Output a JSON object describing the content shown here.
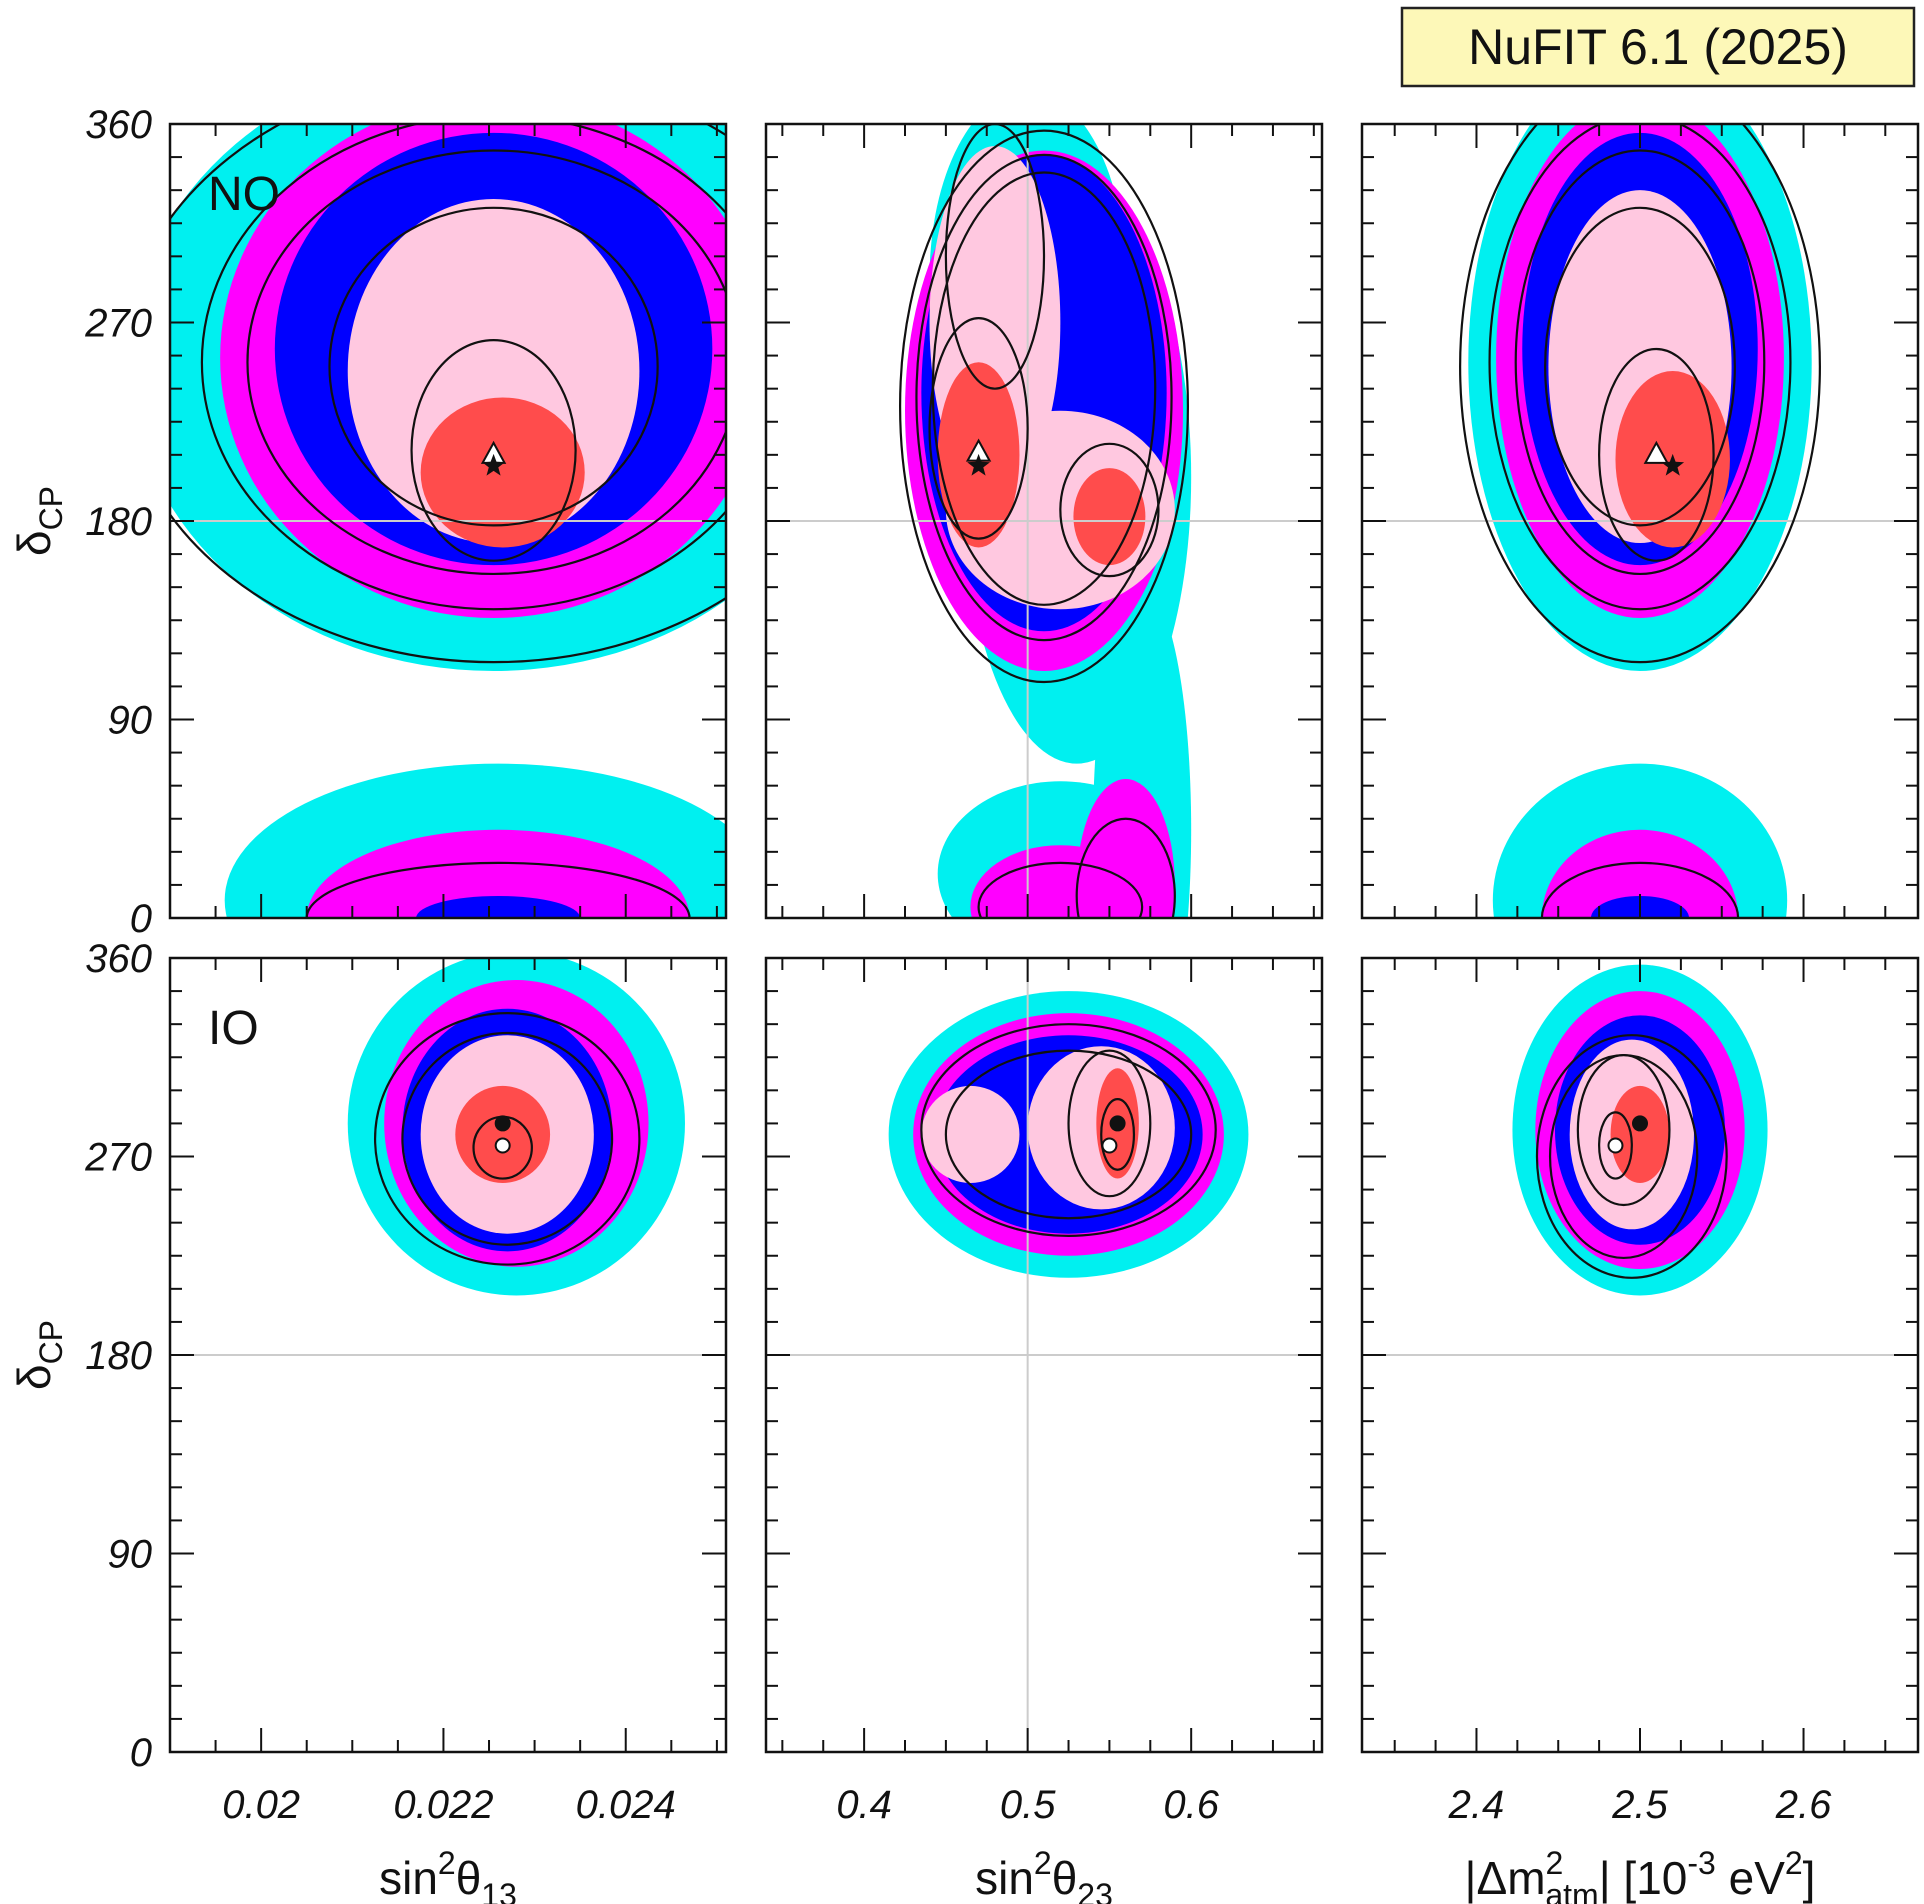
{
  "badge": {
    "text": "NuFIT 6.1 (2025)",
    "fill": "#fdf8b8",
    "stroke": "#222222"
  },
  "region_colors": {
    "sigma5": "#00f0f0",
    "sigma4": "#ff00ff",
    "sigma3": "#0000ff",
    "sigma2": "#ffc8e0",
    "sigma1": "#ff4c4c",
    "contour": "#111111",
    "reference_line": "#cccccc"
  },
  "chart_data": [
    {
      "type": "contour",
      "panel": "NO",
      "label": "NO",
      "xlim": [
        0.019,
        0.0251
      ],
      "ylim": [
        0,
        360
      ],
      "xticks": [],
      "xlabel": "",
      "ylabel": {
        "main": "δ",
        "sub": "CP"
      },
      "yticks": [
        "0",
        "90",
        "180",
        "270",
        "360"
      ],
      "reference_lines": {
        "y": 180
      },
      "best_fit_star": [
        0.02255,
        205
      ],
      "best_fit_triangle": [
        0.02255,
        210
      ],
      "ellipses": [
        {
          "level": "5sigma",
          "cx": 0.02255,
          "cy": 252,
          "rx": 0.004,
          "ry": 140
        },
        {
          "level": "4sigma",
          "cx": 0.02255,
          "cy": 254,
          "rx": 0.003,
          "ry": 118
        },
        {
          "level": "3sigma",
          "cx": 0.02255,
          "cy": 258,
          "rx": 0.0024,
          "ry": 98
        },
        {
          "level": "2sigma",
          "cx": 0.02255,
          "cy": 248,
          "rx": 0.0016,
          "ry": 78
        },
        {
          "level": "1sigma",
          "cx": 0.02265,
          "cy": 202,
          "rx": 0.0009,
          "ry": 34
        },
        {
          "level": "5sigma",
          "cx": 0.0226,
          "cy": 8,
          "rx": 0.003,
          "ry": 62
        },
        {
          "level": "4sigma",
          "cx": 0.0226,
          "cy": 0,
          "rx": 0.0021,
          "ry": 40
        },
        {
          "level": "3sigma",
          "cx": 0.0226,
          "cy": 0,
          "rx": 0.0009,
          "ry": 10
        }
      ],
      "lines": [
        {
          "cx": 0.02255,
          "cy": 250,
          "rx": 0.0041,
          "ry": 134
        },
        {
          "cx": 0.02255,
          "cy": 252,
          "rx": 0.0032,
          "ry": 112
        },
        {
          "cx": 0.02255,
          "cy": 252,
          "rx": 0.0027,
          "ry": 96
        },
        {
          "cx": 0.02255,
          "cy": 250,
          "rx": 0.0018,
          "ry": 72
        },
        {
          "cx": 0.02255,
          "cy": 212,
          "rx": 0.0009,
          "ry": 50
        },
        {
          "cx": 0.0226,
          "cy": 0,
          "rx": 0.0021,
          "ry": 25
        }
      ]
    },
    {
      "type": "contour",
      "panel": "NO",
      "label": "",
      "xlim": [
        0.34,
        0.68
      ],
      "ylim": [
        0,
        360
      ],
      "xticks": [],
      "xlabel": "",
      "ylabel": null,
      "yticks": [],
      "reference_lines": {
        "x": 0.5,
        "y": 180
      },
      "best_fit_star": [
        0.47,
        205
      ],
      "best_fit_triangle": [
        0.47,
        211
      ],
      "ellipses": [
        {
          "level": "5sigma",
          "cx": 0.53,
          "cy": 200,
          "rx": 0.07,
          "ry": 130
        },
        {
          "level": "5sigma",
          "cx": 0.5,
          "cy": 290,
          "rx": 0.06,
          "ry": 85
        },
        {
          "level": "5sigma",
          "cx": 0.57,
          "cy": 40,
          "rx": 0.03,
          "ry": 110
        },
        {
          "level": "5sigma",
          "cx": 0.52,
          "cy": 20,
          "rx": 0.075,
          "ry": 42
        },
        {
          "level": "4sigma",
          "cx": 0.51,
          "cy": 230,
          "rx": 0.085,
          "ry": 118
        },
        {
          "level": "4sigma",
          "cx": 0.56,
          "cy": 15,
          "rx": 0.03,
          "ry": 48
        },
        {
          "level": "4sigma",
          "cx": 0.52,
          "cy": 5,
          "rx": 0.055,
          "ry": 28
        },
        {
          "level": "3sigma",
          "cx": 0.51,
          "cy": 238,
          "rx": 0.075,
          "ry": 108
        },
        {
          "level": "2sigma",
          "cx": 0.48,
          "cy": 270,
          "rx": 0.04,
          "ry": 80
        },
        {
          "level": "2sigma",
          "cx": 0.52,
          "cy": 185,
          "rx": 0.07,
          "ry": 45
        },
        {
          "level": "1sigma",
          "cx": 0.47,
          "cy": 210,
          "rx": 0.025,
          "ry": 42
        },
        {
          "level": "1sigma",
          "cx": 0.55,
          "cy": 182,
          "rx": 0.022,
          "ry": 22
        }
      ],
      "lines": [
        {
          "cx": 0.51,
          "cy": 232,
          "rx": 0.088,
          "ry": 125
        },
        {
          "cx": 0.51,
          "cy": 236,
          "rx": 0.078,
          "ry": 110
        },
        {
          "cx": 0.51,
          "cy": 240,
          "rx": 0.068,
          "ry": 98
        },
        {
          "cx": 0.48,
          "cy": 300,
          "rx": 0.03,
          "ry": 60
        },
        {
          "cx": 0.47,
          "cy": 222,
          "rx": 0.03,
          "ry": 50
        },
        {
          "cx": 0.55,
          "cy": 185,
          "rx": 0.03,
          "ry": 30
        },
        {
          "cx": 0.56,
          "cy": 10,
          "rx": 0.03,
          "ry": 35
        },
        {
          "cx": 0.52,
          "cy": 5,
          "rx": 0.05,
          "ry": 20
        }
      ]
    },
    {
      "type": "contour",
      "panel": "NO",
      "label": "",
      "xlim": [
        2.33,
        2.67
      ],
      "ylim": [
        0,
        360
      ],
      "xticks": [],
      "xlabel": "",
      "ylabel": null,
      "yticks": [],
      "reference_lines": {
        "y": 180
      },
      "best_fit_star": [
        2.52,
        205
      ],
      "best_fit_triangle": [
        2.51,
        210
      ],
      "ellipses": [
        {
          "level": "5sigma",
          "cx": 2.5,
          "cy": 252,
          "rx": 0.105,
          "ry": 140
        },
        {
          "level": "4sigma",
          "cx": 2.5,
          "cy": 254,
          "rx": 0.088,
          "ry": 118
        },
        {
          "level": "3sigma",
          "cx": 2.5,
          "cy": 258,
          "rx": 0.072,
          "ry": 98
        },
        {
          "level": "2sigma",
          "cx": 2.5,
          "cy": 250,
          "rx": 0.056,
          "ry": 80
        },
        {
          "level": "1sigma",
          "cx": 2.52,
          "cy": 208,
          "rx": 0.035,
          "ry": 40
        },
        {
          "level": "5sigma",
          "cx": 2.5,
          "cy": 8,
          "rx": 0.09,
          "ry": 62
        },
        {
          "level": "4sigma",
          "cx": 2.5,
          "cy": 0,
          "rx": 0.06,
          "ry": 40
        },
        {
          "level": "3sigma",
          "cx": 2.5,
          "cy": 0,
          "rx": 0.03,
          "ry": 10
        }
      ],
      "lines": [
        {
          "cx": 2.5,
          "cy": 250,
          "rx": 0.11,
          "ry": 134
        },
        {
          "cx": 2.5,
          "cy": 252,
          "rx": 0.092,
          "ry": 112
        },
        {
          "cx": 2.5,
          "cy": 252,
          "rx": 0.076,
          "ry": 96
        },
        {
          "cx": 2.5,
          "cy": 250,
          "rx": 0.058,
          "ry": 72
        },
        {
          "cx": 2.51,
          "cy": 210,
          "rx": 0.035,
          "ry": 48
        },
        {
          "cx": 2.5,
          "cy": 0,
          "rx": 0.06,
          "ry": 25
        }
      ]
    },
    {
      "type": "contour",
      "panel": "IO",
      "label": "IO",
      "xlim": [
        0.019,
        0.0251
      ],
      "ylim": [
        0,
        360
      ],
      "xticks": [
        "0.02",
        "0.022",
        "0.024"
      ],
      "xlabel": {
        "main": "sin",
        "sup": "2",
        "theta": "θ",
        "sub": "13"
      },
      "ylabel": {
        "main": "δ",
        "sub": "CP"
      },
      "yticks": [
        "0",
        "90",
        "180",
        "270",
        "360"
      ],
      "reference_lines": {
        "y": 180
      },
      "best_fit_dot": [
        0.02265,
        285
      ],
      "best_fit_circle": [
        0.02265,
        275
      ],
      "ellipses": [
        {
          "level": "5sigma",
          "cx": 0.0228,
          "cy": 285,
          "rx": 0.00185,
          "ry": 78
        },
        {
          "level": "4sigma",
          "cx": 0.0228,
          "cy": 285,
          "rx": 0.00145,
          "ry": 65
        },
        {
          "level": "3sigma",
          "cx": 0.0227,
          "cy": 282,
          "rx": 0.00115,
          "ry": 55
        },
        {
          "level": "2sigma",
          "cx": 0.0227,
          "cy": 280,
          "rx": 0.00095,
          "ry": 45
        },
        {
          "level": "1sigma",
          "cx": 0.02265,
          "cy": 280,
          "rx": 0.00052,
          "ry": 22
        }
      ],
      "lines": [
        {
          "cx": 0.0227,
          "cy": 278,
          "rx": 0.00145,
          "ry": 57
        },
        {
          "cx": 0.0227,
          "cy": 278,
          "rx": 0.00115,
          "ry": 48
        },
        {
          "cx": 0.02265,
          "cy": 274,
          "rx": 0.00032,
          "ry": 14
        }
      ]
    },
    {
      "type": "contour",
      "panel": "IO",
      "label": "",
      "xlim": [
        0.34,
        0.68
      ],
      "ylim": [
        0,
        360
      ],
      "xticks": [
        "0.4",
        "0.5",
        "0.6"
      ],
      "xlabel": {
        "main": "sin",
        "sup": "2",
        "theta": "θ",
        "sub": "23"
      },
      "ylabel": null,
      "yticks": [],
      "reference_lines": {
        "x": 0.5,
        "y": 180
      },
      "best_fit_dot": [
        0.555,
        285
      ],
      "best_fit_circle": [
        0.55,
        275
      ],
      "ellipses": [
        {
          "level": "5sigma",
          "cx": 0.525,
          "cy": 280,
          "rx": 0.11,
          "ry": 65
        },
        {
          "level": "4sigma",
          "cx": 0.525,
          "cy": 280,
          "rx": 0.095,
          "ry": 55
        },
        {
          "level": "3sigma",
          "cx": 0.525,
          "cy": 280,
          "rx": 0.082,
          "ry": 45
        },
        {
          "level": "2sigma",
          "cx": 0.465,
          "cy": 280,
          "rx": 0.03,
          "ry": 22
        },
        {
          "level": "2sigma",
          "cx": 0.545,
          "cy": 283,
          "rx": 0.045,
          "ry": 37
        },
        {
          "level": "1sigma",
          "cx": 0.555,
          "cy": 285,
          "rx": 0.013,
          "ry": 25
        }
      ],
      "lines": [
        {
          "cx": 0.525,
          "cy": 282,
          "rx": 0.09,
          "ry": 48
        },
        {
          "cx": 0.525,
          "cy": 280,
          "rx": 0.075,
          "ry": 38
        },
        {
          "cx": 0.55,
          "cy": 285,
          "rx": 0.025,
          "ry": 33
        },
        {
          "cx": 0.555,
          "cy": 280,
          "rx": 0.01,
          "ry": 16
        }
      ]
    },
    {
      "type": "contour",
      "panel": "IO",
      "label": "",
      "xlim": [
        2.33,
        2.67
      ],
      "ylim": [
        0,
        360
      ],
      "xticks": [
        "2.4",
        "2.5",
        "2.6"
      ],
      "xlabel": {
        "pre": "|Δm",
        "sup": "2",
        "sub": "atm",
        "post": "| [10",
        "sup2": "-3",
        "post2": " eV",
        "sup3": "2",
        "end": "]"
      },
      "ylabel": null,
      "yticks": [],
      "reference_lines": {
        "y": 180
      },
      "best_fit_dot": [
        2.5,
        285
      ],
      "best_fit_circle": [
        2.485,
        275
      ],
      "ellipses": [
        {
          "level": "5sigma",
          "cx": 2.5,
          "cy": 282,
          "rx": 0.078,
          "ry": 75
        },
        {
          "level": "4sigma",
          "cx": 2.5,
          "cy": 282,
          "rx": 0.064,
          "ry": 63
        },
        {
          "level": "3sigma",
          "cx": 2.5,
          "cy": 282,
          "rx": 0.052,
          "ry": 52
        },
        {
          "level": "2sigma",
          "cx": 2.495,
          "cy": 280,
          "rx": 0.038,
          "ry": 43
        },
        {
          "level": "1sigma",
          "cx": 2.5,
          "cy": 280,
          "rx": 0.018,
          "ry": 22
        }
      ],
      "lines": [
        {
          "cx": 2.495,
          "cy": 270,
          "rx": 0.058,
          "ry": 55
        },
        {
          "cx": 2.49,
          "cy": 270,
          "rx": 0.045,
          "ry": 46
        },
        {
          "cx": 2.49,
          "cy": 282,
          "rx": 0.028,
          "ry": 34
        },
        {
          "cx": 2.485,
          "cy": 275,
          "rx": 0.01,
          "ry": 15
        }
      ]
    }
  ]
}
